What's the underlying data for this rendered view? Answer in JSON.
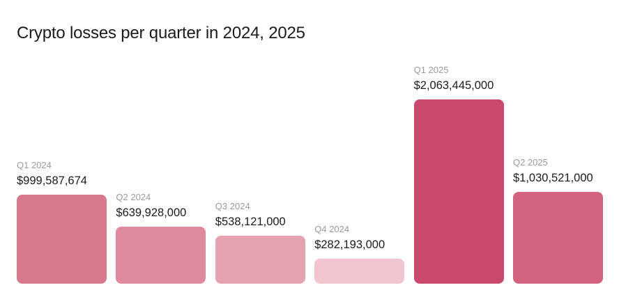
{
  "chart_data": {
    "type": "bar",
    "title": "Crypto losses per quarter in 2024, 2025",
    "xlabel": "",
    "ylabel": "",
    "categories": [
      "Q1 2024",
      "Q2 2024",
      "Q3 2024",
      "Q4 2024",
      "Q1 2025",
      "Q2 2025"
    ],
    "values": [
      999587674,
      639928000,
      538121000,
      282193000,
      2063445000,
      1030521000
    ],
    "value_labels": [
      "$999,587,674",
      "$639,928,000",
      "$538,121,000",
      "$282,193,000",
      "$2,063,445,000",
      "$1,030,521,000"
    ],
    "colors": [
      "#d8788b",
      "#de8a9c",
      "#e4a3ae",
      "#f0c5cd",
      "#c9496a",
      "#d2627e"
    ],
    "ylim": [
      0,
      2063445000
    ],
    "grid": false,
    "legend": "none"
  }
}
